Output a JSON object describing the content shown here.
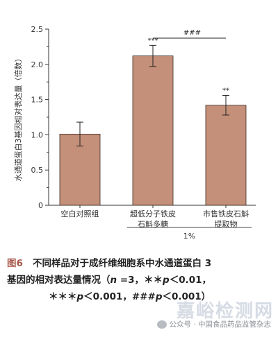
{
  "chart_data": {
    "type": "bar",
    "ylabel": "水通道蛋白3基因相对表达量（倍数）",
    "ylim": [
      0,
      2.5
    ],
    "yticks": [
      "0",
      "0.5",
      "1.0",
      "1.5",
      "2.0",
      "2.5"
    ],
    "categories": [
      [
        "空白对照组"
      ],
      [
        "超低分子铁皮",
        "石斛多糖"
      ],
      [
        "市售铁皮石斛",
        "提取物"
      ]
    ],
    "values": [
      1.01,
      2.12,
      1.42
    ],
    "errors": [
      0.17,
      0.15,
      0.14
    ],
    "significance": [
      "",
      "***",
      "**"
    ],
    "bracket_label": "###",
    "group_label": "1%",
    "bar_color": "#c49079"
  },
  "caption": {
    "fig_label": "图6",
    "line1": "不同样品对于成纤维细胞系中水通道蛋白 3",
    "line2_a": "基因的相对表达量情况（",
    "n": "n",
    "line2_b": " =3，＊＊",
    "p1": "p",
    "line2_c": "＜0.01，",
    "line3_a": "＊＊＊",
    "p2": "p",
    "line3_b": "＜0.001，###",
    "p3": "p",
    "line3_c": "＜0.001）"
  },
  "watermark": {
    "big": "嘉峪检测网",
    "small": "公众号 · 中国食品药品监管杂志"
  }
}
